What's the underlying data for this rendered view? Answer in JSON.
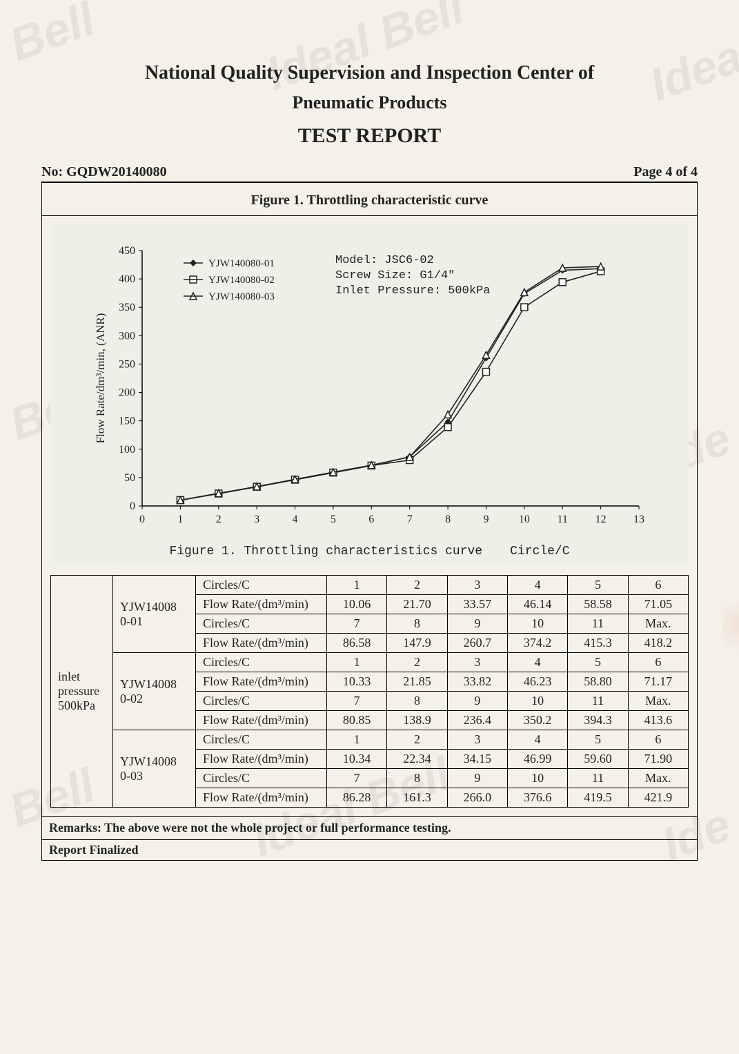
{
  "watermarks": [
    "al Bell",
    "Ideal",
    "al Bell",
    "Ideal Bell",
    "Ideal",
    "al Bell",
    "Ideal Bell",
    "Ideal"
  ],
  "header": {
    "line1": "National Quality Supervision and Inspection Center of",
    "line2": "Pneumatic Products",
    "report": "TEST REPORT",
    "report_no_label": "No: ",
    "report_no": "GQDW20140080",
    "page_label": "Page 4 of 4"
  },
  "figure": {
    "title": "Figure 1. Throttling characteristic curve",
    "caption_main": "Figure 1. Throttling characteristics curve",
    "caption_right": "Circle/C",
    "legend": [
      "YJW140080-01",
      "YJW140080-02",
      "YJW140080-03"
    ],
    "info_lines": [
      "Model: JSC6-02",
      "Screw Size: G1/4\"",
      "Inlet Pressure: 500kPa"
    ],
    "y_axis_label": "Flow Rate/dm³/min, (ANR)",
    "x_ticks": [
      0,
      1,
      2,
      3,
      4,
      5,
      6,
      7,
      8,
      9,
      10,
      11,
      12,
      13
    ],
    "y_ticks": [
      0,
      50,
      100,
      150,
      200,
      250,
      300,
      350,
      400,
      450
    ],
    "xlim": [
      0,
      13
    ],
    "ylim": [
      0,
      450
    ],
    "series_common_x": [
      1,
      2,
      3,
      4,
      5,
      6,
      7,
      8,
      9,
      10,
      11,
      12
    ],
    "series": [
      {
        "name": "YJW140080-01",
        "marker": "diamond",
        "color": "#222",
        "y": [
          10.06,
          21.7,
          33.57,
          46.14,
          58.58,
          71.05,
          86.58,
          147.9,
          260.7,
          374.2,
          415.3,
          418.2
        ]
      },
      {
        "name": "YJW140080-02",
        "marker": "square",
        "color": "#222",
        "y": [
          10.33,
          21.85,
          33.82,
          46.23,
          58.8,
          71.17,
          80.85,
          138.9,
          236.4,
          350.2,
          394.3,
          413.6
        ]
      },
      {
        "name": "YJW140080-03",
        "marker": "triangle",
        "color": "#222",
        "y": [
          10.34,
          22.34,
          34.15,
          46.99,
          59.6,
          71.9,
          86.28,
          161.3,
          266.0,
          376.6,
          419.5,
          421.9
        ]
      }
    ],
    "background_color": "#eef0e8",
    "axis_color": "#000",
    "tick_fontsize": 16,
    "legend_fontsize": 15
  },
  "table": {
    "side_label_lines": [
      "inlet",
      "pressure",
      "500kPa"
    ],
    "row_label_circles": "Circles/C",
    "row_label_flow": "Flow Rate/(dm³/min)",
    "groups": [
      {
        "name": "YJW14008 0-01",
        "rows": [
          {
            "circles": [
              "1",
              "2",
              "3",
              "4",
              "5",
              "6"
            ],
            "flow": [
              "10.06",
              "21.70",
              "33.57",
              "46.14",
              "58.58",
              "71.05"
            ]
          },
          {
            "circles": [
              "7",
              "8",
              "9",
              "10",
              "11",
              "Max."
            ],
            "flow": [
              "86.58",
              "147.9",
              "260.7",
              "374.2",
              "415.3",
              "418.2"
            ]
          }
        ]
      },
      {
        "name": "YJW14008 0-02",
        "rows": [
          {
            "circles": [
              "1",
              "2",
              "3",
              "4",
              "5",
              "6"
            ],
            "flow": [
              "10.33",
              "21.85",
              "33.82",
              "46.23",
              "58.80",
              "71.17"
            ]
          },
          {
            "circles": [
              "7",
              "8",
              "9",
              "10",
              "11",
              "Max."
            ],
            "flow": [
              "80.85",
              "138.9",
              "236.4",
              "350.2",
              "394.3",
              "413.6"
            ]
          }
        ]
      },
      {
        "name": "YJW14008 0-03",
        "rows": [
          {
            "circles": [
              "1",
              "2",
              "3",
              "4",
              "5",
              "6"
            ],
            "flow": [
              "10.34",
              "22.34",
              "34.15",
              "46.99",
              "59.60",
              "71.90"
            ]
          },
          {
            "circles": [
              "7",
              "8",
              "9",
              "10",
              "11",
              "Max."
            ],
            "flow": [
              "86.28",
              "161.3",
              "266.0",
              "376.6",
              "419.5",
              "421.9"
            ]
          }
        ]
      }
    ]
  },
  "remarks": "Remarks: The above were not the whole project or full performance testing.",
  "finalized": "Report Finalized"
}
